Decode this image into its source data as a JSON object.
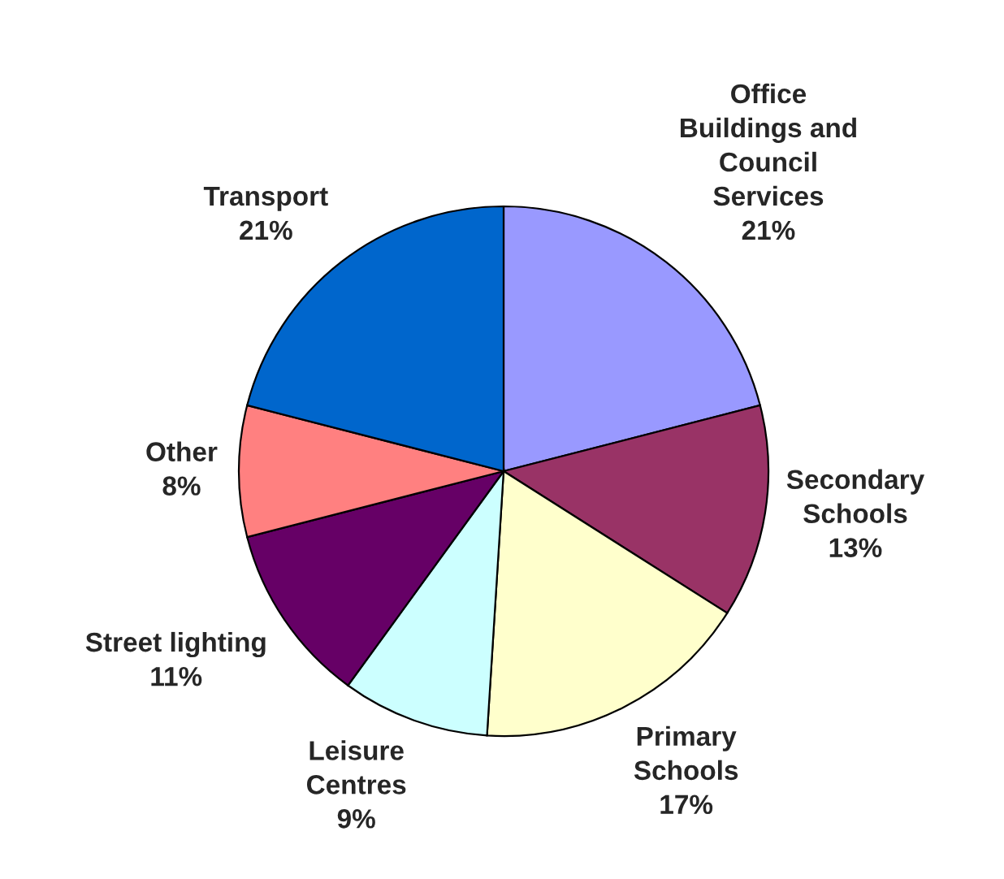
{
  "chart_data": {
    "type": "pie",
    "categories": [
      "Office\nBuildings and\nCouncil\nServices",
      "Secondary\nSchools",
      "Primary\nSchools",
      "Leisure\nCentres",
      "Street lighting",
      "Other",
      "Transport"
    ],
    "values": [
      21,
      13,
      17,
      9,
      11,
      8,
      21
    ],
    "value_labels": [
      "21%",
      "13%",
      "17%",
      "9%",
      "11%",
      "8%",
      "21%"
    ],
    "colors": [
      "#9999ff",
      "#993366",
      "#ffffcc",
      "#ccffff",
      "#660066",
      "#ff8080",
      "#0066cc"
    ],
    "legend": false
  }
}
